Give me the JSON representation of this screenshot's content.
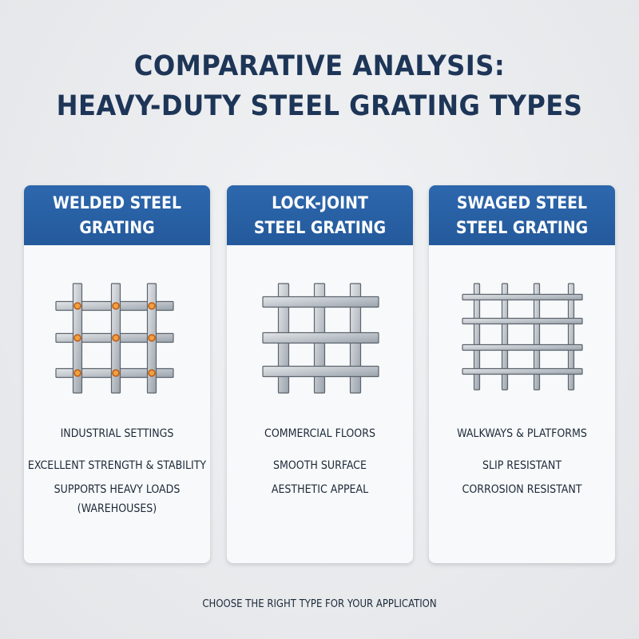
{
  "header": {
    "title_lines": [
      "COMPARATIVE ANALYSIS:",
      "HEAVY-DUTY STEEL GRATING TYPES"
    ]
  },
  "cards": [
    {
      "title_lines": [
        "WELDED STEEL",
        "GRATING"
      ],
      "features": [
        "INDUSTRIAL SETTINGS",
        "EXCELLENT STRENGTH & STABILITY",
        "SUPPORTS HEAVY LOADS (WAREHOUSES)"
      ]
    },
    {
      "title_lines": [
        "LOCK-JOINT",
        "STEEL GRATING"
      ],
      "features": [
        "COMMERCIAL FLOORS",
        "SMOOTH SURFACE",
        "AESTHETIC APPEAL"
      ]
    },
    {
      "title_lines": [
        "SWAGED STEEL",
        "STEEL GRATING"
      ],
      "features": [
        "WALKWAYS & PLATFORMS",
        "SLIP RESISTANT",
        "CORROSION RESISTANT"
      ]
    }
  ],
  "footer": {
    "text": "CHOOSE THE RIGHT TYPE FOR YOUR APPLICATION"
  }
}
